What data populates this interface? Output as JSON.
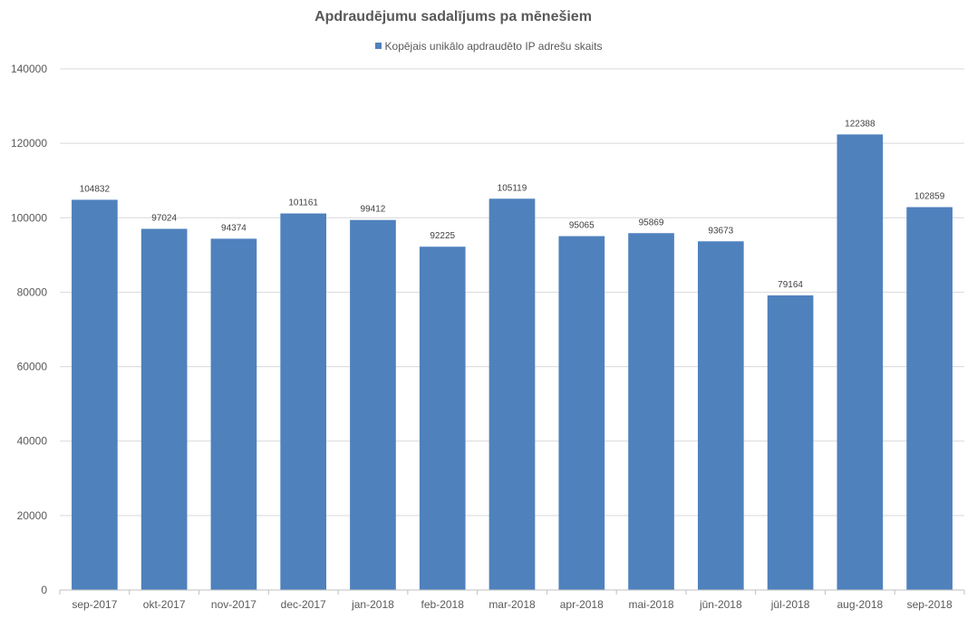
{
  "chart_data": {
    "type": "bar",
    "title": "Apdraudējumu sadalījums pa mēnešiem",
    "xlabel": "",
    "ylabel": "",
    "categories": [
      "sep-2017",
      "okt-2017",
      "nov-2017",
      "dec-2017",
      "jan-2018",
      "feb-2018",
      "mar-2018",
      "apr-2018",
      "mai-2018",
      "jūn-2018",
      "jūl-2018",
      "aug-2018",
      "sep-2018"
    ],
    "series": [
      {
        "name": "Kopējais unikālo apdraudēto IP adrešu skaits",
        "values": [
          104832,
          97024,
          94374,
          101161,
          99412,
          92225,
          105119,
          95065,
          95869,
          93673,
          79164,
          122388,
          102859
        ]
      }
    ],
    "ylim": [
      0,
      140000
    ],
    "yticks": [
      "0",
      "20000",
      "40000",
      "60000",
      "80000",
      "100000",
      "120000",
      "140000"
    ],
    "grid": true,
    "legend_position": "top",
    "bar_color": "#4f81bd",
    "data_labels": true
  }
}
